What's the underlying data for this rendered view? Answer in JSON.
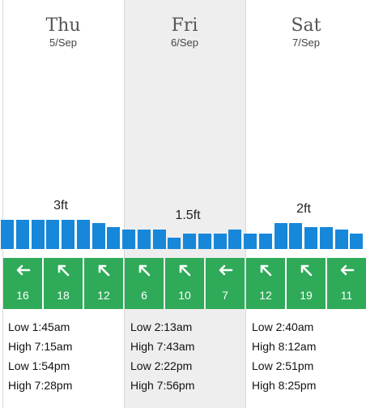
{
  "days": [
    {
      "name": "Thu",
      "date": "5/Sep",
      "height": "3ft",
      "bars": [
        0.76,
        0.76,
        0.76,
        0.76,
        0.76,
        0.76,
        0.66,
        0.57
      ],
      "wind": [
        {
          "speed": "16",
          "direction": "west-arrow-icon"
        },
        {
          "speed": "18",
          "direction": "north-west-arrow-icon"
        },
        {
          "speed": "12",
          "direction": "north-west-arrow-icon"
        }
      ],
      "tides": [
        "Low 1:45am",
        "High 7:15am",
        "Low 1:54pm",
        "High 7:28pm"
      ]
    },
    {
      "name": "Fri",
      "date": "6/Sep",
      "height": "1.5ft",
      "bars": [
        0.49,
        0.49,
        0.49,
        0.29,
        0.4,
        0.4,
        0.4,
        0.49
      ],
      "wind": [
        {
          "speed": "6",
          "direction": "north-west-arrow-icon"
        },
        {
          "speed": "10",
          "direction": "north-west-arrow-icon"
        },
        {
          "speed": "7",
          "direction": "west-arrow-icon"
        }
      ],
      "tides": [
        "Low 2:13am",
        "High 7:43am",
        "Low 2:22pm",
        "High 7:56pm"
      ]
    },
    {
      "name": "Sat",
      "date": "7/Sep",
      "height": "2ft",
      "bars": [
        0.4,
        0.4,
        0.66,
        0.66,
        0.57,
        0.57,
        0.49,
        0.4
      ],
      "wind": [
        {
          "speed": "12",
          "direction": "north-west-arrow-icon"
        },
        {
          "speed": "19",
          "direction": "north-west-arrow-icon"
        },
        {
          "speed": "11",
          "direction": "west-arrow-icon"
        }
      ],
      "tides": [
        "Low 2:40am",
        "High 8:12am",
        "Low 2:51pm",
        "High 8:25pm"
      ]
    }
  ],
  "colors": {
    "bar": "#1787d9",
    "wind": "#2eaa58",
    "highlight": "#eeeeee"
  }
}
